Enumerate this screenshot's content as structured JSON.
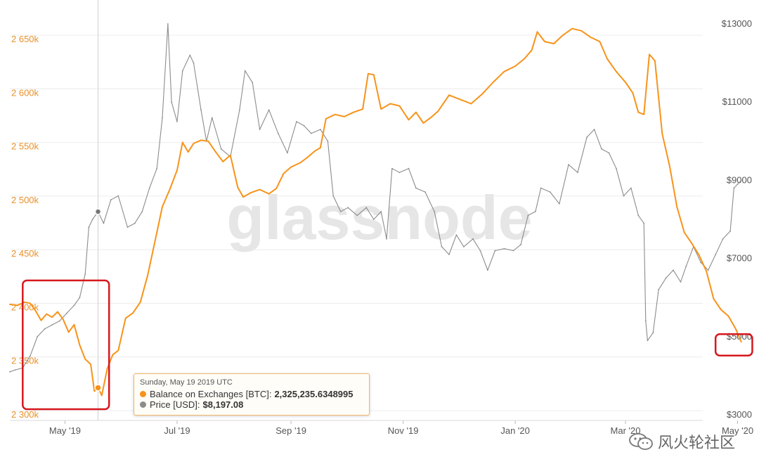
{
  "watermark": "glassnode",
  "tooltip": {
    "date": "Sunday, May 19 2019 UTC",
    "series1_label": "Balance on Exchanges [BTC]:",
    "series1_value": "2,325,235.6348995",
    "series2_label": "Price [USD]:",
    "series2_value": "$8,197.08"
  },
  "footer": {
    "brand": "风火轮社区",
    "icon": "wechat-icon"
  },
  "colors": {
    "balance": "#f7931a",
    "price": "#8c8c8c",
    "highlight": "#d6181e",
    "grid": "#ececec"
  },
  "chart_data": {
    "type": "line",
    "x_ticks": [
      "May '19",
      "Jul '19",
      "Sep '19",
      "Nov '19",
      "Jan '20",
      "Mar '20",
      "May '20"
    ],
    "y_left_ticks": [
      "2 300k",
      "2 350k",
      "2 400k",
      "2 450k",
      "2 500k",
      "2 550k",
      "2 600k",
      "2 650k"
    ],
    "y_right_ticks": [
      "$3000",
      "$5000",
      "$7000",
      "$9000",
      "$11000",
      "$13000"
    ],
    "y_left_range": [
      2300000,
      2650000
    ],
    "y_right_range": [
      3000,
      13000
    ],
    "x_range": [
      "2019-04-01",
      "2020-05-05"
    ],
    "grid": true,
    "series": [
      {
        "name": "Balance on Exchanges [BTC]",
        "axis": "left",
        "points": [
          [
            "2019-04-01",
            2403000
          ],
          [
            "2019-04-05",
            2402000
          ],
          [
            "2019-04-09",
            2405000
          ],
          [
            "2019-04-12",
            2404000
          ],
          [
            "2019-04-15",
            2397000
          ],
          [
            "2019-04-18",
            2388000
          ],
          [
            "2019-04-21",
            2394000
          ],
          [
            "2019-04-24",
            2391000
          ],
          [
            "2019-04-27",
            2396000
          ],
          [
            "2019-04-30",
            2389000
          ],
          [
            "2019-05-03",
            2377000
          ],
          [
            "2019-05-06",
            2384000
          ],
          [
            "2019-05-09",
            2365000
          ],
          [
            "2019-05-12",
            2352000
          ],
          [
            "2019-05-15",
            2347000
          ],
          [
            "2019-05-17",
            2322000
          ],
          [
            "2019-05-19",
            2325235
          ],
          [
            "2019-05-21",
            2318000
          ],
          [
            "2019-05-24",
            2343000
          ],
          [
            "2019-05-27",
            2356000
          ],
          [
            "2019-05-30",
            2360000
          ],
          [
            "2019-06-03",
            2390000
          ],
          [
            "2019-06-07",
            2395000
          ],
          [
            "2019-06-11",
            2405000
          ],
          [
            "2019-06-15",
            2430000
          ],
          [
            "2019-06-19",
            2462000
          ],
          [
            "2019-06-23",
            2494000
          ],
          [
            "2019-06-27",
            2510000
          ],
          [
            "2019-07-01",
            2528000
          ],
          [
            "2019-07-04",
            2554000
          ],
          [
            "2019-07-07",
            2545000
          ],
          [
            "2019-07-10",
            2553000
          ],
          [
            "2019-07-14",
            2556000
          ],
          [
            "2019-07-18",
            2555000
          ],
          [
            "2019-07-22",
            2545000
          ],
          [
            "2019-07-26",
            2536000
          ],
          [
            "2019-07-30",
            2542000
          ],
          [
            "2019-08-03",
            2512000
          ],
          [
            "2019-08-06",
            2503000
          ],
          [
            "2019-08-10",
            2507000
          ],
          [
            "2019-08-15",
            2510000
          ],
          [
            "2019-08-20",
            2506000
          ],
          [
            "2019-08-24",
            2511000
          ],
          [
            "2019-08-28",
            2525000
          ],
          [
            "2019-09-01",
            2531000
          ],
          [
            "2019-09-06",
            2535000
          ],
          [
            "2019-09-10",
            2540000
          ],
          [
            "2019-09-14",
            2546000
          ],
          [
            "2019-09-17",
            2549000
          ],
          [
            "2019-09-20",
            2576000
          ],
          [
            "2019-09-25",
            2580000
          ],
          [
            "2019-09-30",
            2578000
          ],
          [
            "2019-10-05",
            2582000
          ],
          [
            "2019-10-10",
            2585000
          ],
          [
            "2019-10-13",
            2618000
          ],
          [
            "2019-10-16",
            2617000
          ],
          [
            "2019-10-20",
            2585000
          ],
          [
            "2019-10-25",
            2590000
          ],
          [
            "2019-10-30",
            2588000
          ],
          [
            "2019-11-04",
            2575000
          ],
          [
            "2019-11-08",
            2582000
          ],
          [
            "2019-11-12",
            2572000
          ],
          [
            "2019-11-16",
            2577000
          ],
          [
            "2019-11-20",
            2583000
          ],
          [
            "2019-11-26",
            2598000
          ],
          [
            "2019-12-02",
            2594000
          ],
          [
            "2019-12-08",
            2590000
          ],
          [
            "2019-12-14",
            2599000
          ],
          [
            "2019-12-20",
            2610000
          ],
          [
            "2019-12-26",
            2620000
          ],
          [
            "2020-01-01",
            2625000
          ],
          [
            "2020-01-06",
            2632000
          ],
          [
            "2020-01-10",
            2640000
          ],
          [
            "2020-01-13",
            2657000
          ],
          [
            "2020-01-17",
            2648000
          ],
          [
            "2020-01-22",
            2646000
          ],
          [
            "2020-01-27",
            2654000
          ],
          [
            "2020-02-01",
            2660000
          ],
          [
            "2020-02-06",
            2658000
          ],
          [
            "2020-02-11",
            2652000
          ],
          [
            "2020-02-16",
            2648000
          ],
          [
            "2020-02-20",
            2632000
          ],
          [
            "2020-02-25",
            2620000
          ],
          [
            "2020-03-01",
            2610000
          ],
          [
            "2020-03-05",
            2600000
          ],
          [
            "2020-03-08",
            2582000
          ],
          [
            "2020-03-11",
            2580000
          ],
          [
            "2020-03-14",
            2636000
          ],
          [
            "2020-03-17",
            2630000
          ],
          [
            "2020-03-21",
            2562000
          ],
          [
            "2020-03-25",
            2532000
          ],
          [
            "2020-03-29",
            2494000
          ],
          [
            "2020-04-02",
            2470000
          ],
          [
            "2020-04-06",
            2460000
          ],
          [
            "2020-04-10",
            2449000
          ],
          [
            "2020-04-14",
            2434000
          ],
          [
            "2020-04-18",
            2408000
          ],
          [
            "2020-04-22",
            2398000
          ],
          [
            "2020-04-26",
            2392000
          ],
          [
            "2020-04-30",
            2380000
          ],
          [
            "2020-05-03",
            2368000
          ]
        ]
      },
      {
        "name": "Price [USD]",
        "axis": "right",
        "points": [
          [
            "2019-04-01",
            4100
          ],
          [
            "2019-04-04",
            4150
          ],
          [
            "2019-04-08",
            4200
          ],
          [
            "2019-04-12",
            4500
          ],
          [
            "2019-04-16",
            5000
          ],
          [
            "2019-04-20",
            5200
          ],
          [
            "2019-04-24",
            5300
          ],
          [
            "2019-04-28",
            5400
          ],
          [
            "2019-05-02",
            5600
          ],
          [
            "2019-05-06",
            5800
          ],
          [
            "2019-05-09",
            6000
          ],
          [
            "2019-05-12",
            6600
          ],
          [
            "2019-05-14",
            7800
          ],
          [
            "2019-05-16",
            8000
          ],
          [
            "2019-05-19",
            8197
          ],
          [
            "2019-05-22",
            7900
          ],
          [
            "2019-05-26",
            8500
          ],
          [
            "2019-05-30",
            8600
          ],
          [
            "2019-06-04",
            7800
          ],
          [
            "2019-06-08",
            7900
          ],
          [
            "2019-06-12",
            8200
          ],
          [
            "2019-06-16",
            8800
          ],
          [
            "2019-06-20",
            9300
          ],
          [
            "2019-06-23",
            10600
          ],
          [
            "2019-06-26",
            13000
          ],
          [
            "2019-06-28",
            11000
          ],
          [
            "2019-07-01",
            10500
          ],
          [
            "2019-07-04",
            11800
          ],
          [
            "2019-07-08",
            12200
          ],
          [
            "2019-07-10",
            12000
          ],
          [
            "2019-07-14",
            10800
          ],
          [
            "2019-07-17",
            10000
          ],
          [
            "2019-07-20",
            10600
          ],
          [
            "2019-07-25",
            9800
          ],
          [
            "2019-07-30",
            9600
          ],
          [
            "2019-08-04",
            10800
          ],
          [
            "2019-08-07",
            11800
          ],
          [
            "2019-08-11",
            11500
          ],
          [
            "2019-08-15",
            10300
          ],
          [
            "2019-08-20",
            10800
          ],
          [
            "2019-08-25",
            10200
          ],
          [
            "2019-08-30",
            9700
          ],
          [
            "2019-09-04",
            10500
          ],
          [
            "2019-09-08",
            10400
          ],
          [
            "2019-09-12",
            10200
          ],
          [
            "2019-09-17",
            10300
          ],
          [
            "2019-09-21",
            10000
          ],
          [
            "2019-09-24",
            8600
          ],
          [
            "2019-09-28",
            8200
          ],
          [
            "2019-10-02",
            8300
          ],
          [
            "2019-10-07",
            8100
          ],
          [
            "2019-10-12",
            8300
          ],
          [
            "2019-10-16",
            8000
          ],
          [
            "2019-10-20",
            8200
          ],
          [
            "2019-10-23",
            7500
          ],
          [
            "2019-10-26",
            9300
          ],
          [
            "2019-10-30",
            9200
          ],
          [
            "2019-11-04",
            9300
          ],
          [
            "2019-11-08",
            8800
          ],
          [
            "2019-11-13",
            8700
          ],
          [
            "2019-11-18",
            8200
          ],
          [
            "2019-11-22",
            7300
          ],
          [
            "2019-11-26",
            7100
          ],
          [
            "2019-11-30",
            7600
          ],
          [
            "2019-12-04",
            7300
          ],
          [
            "2019-12-09",
            7500
          ],
          [
            "2019-12-13",
            7200
          ],
          [
            "2019-12-17",
            6700
          ],
          [
            "2019-12-21",
            7200
          ],
          [
            "2019-12-26",
            7250
          ],
          [
            "2019-12-31",
            7200
          ],
          [
            "2020-01-04",
            7350
          ],
          [
            "2020-01-08",
            8100
          ],
          [
            "2020-01-12",
            8200
          ],
          [
            "2020-01-15",
            8800
          ],
          [
            "2020-01-20",
            8700
          ],
          [
            "2020-01-25",
            8400
          ],
          [
            "2020-01-30",
            9400
          ],
          [
            "2020-02-04",
            9200
          ],
          [
            "2020-02-09",
            10100
          ],
          [
            "2020-02-13",
            10300
          ],
          [
            "2020-02-17",
            9800
          ],
          [
            "2020-02-21",
            9700
          ],
          [
            "2020-02-25",
            9300
          ],
          [
            "2020-02-29",
            8600
          ],
          [
            "2020-03-04",
            8800
          ],
          [
            "2020-03-08",
            8100
          ],
          [
            "2020-03-11",
            7900
          ],
          [
            "2020-03-12",
            5400
          ],
          [
            "2020-03-13",
            4900
          ],
          [
            "2020-03-16",
            5100
          ],
          [
            "2020-03-19",
            6200
          ],
          [
            "2020-03-23",
            6500
          ],
          [
            "2020-03-27",
            6700
          ],
          [
            "2020-03-31",
            6400
          ],
          [
            "2020-04-03",
            6800
          ],
          [
            "2020-04-07",
            7300
          ],
          [
            "2020-04-11",
            6900
          ],
          [
            "2020-04-15",
            6700
          ],
          [
            "2020-04-19",
            7100
          ],
          [
            "2020-04-23",
            7500
          ],
          [
            "2020-04-27",
            7700
          ],
          [
            "2020-04-29",
            8800
          ],
          [
            "2020-05-01",
            8900
          ],
          [
            "2020-05-03",
            9000
          ]
        ]
      }
    ],
    "annotations": [
      {
        "type": "box",
        "label": "",
        "x_range": [
          "2019-04-08",
          "2019-05-25"
        ],
        "y_left_range": [
          2300000,
          2420000
        ]
      },
      {
        "type": "box",
        "label": "",
        "x_range": [
          "2020-04-19",
          "2020-05-09"
        ],
        "y_left_range": [
          2350000,
          2370000
        ]
      },
      {
        "type": "marker",
        "date": "2019-05-19",
        "series": "both"
      }
    ]
  }
}
